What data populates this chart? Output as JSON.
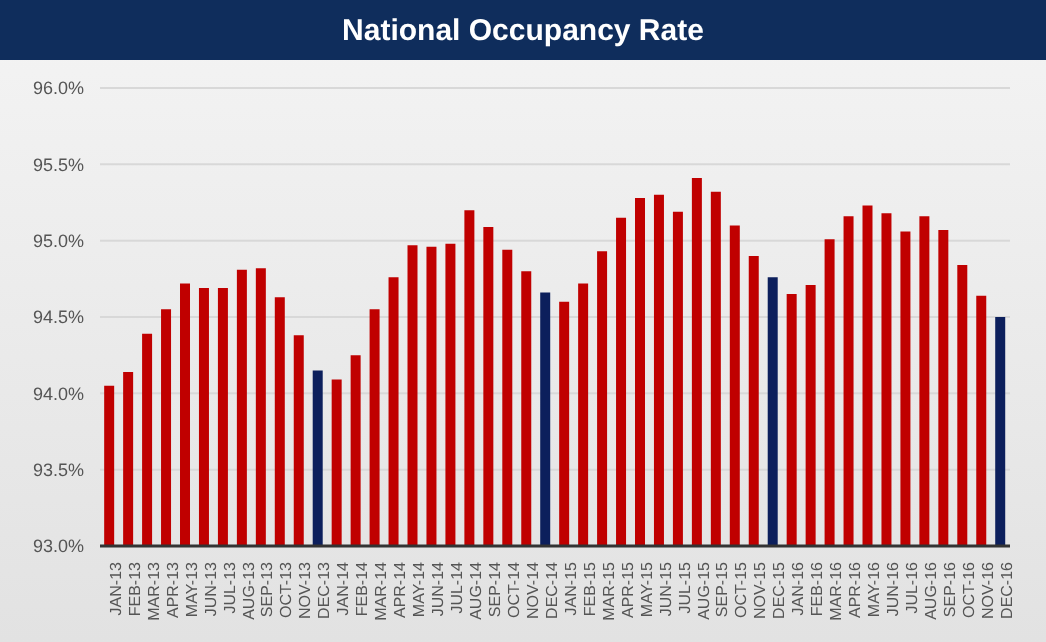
{
  "chart_data": {
    "type": "bar",
    "title": "National Occupancy Rate",
    "categories": [
      "JAN-13",
      "FEB-13",
      "MAR-13",
      "APR-13",
      "MAY-13",
      "JUN-13",
      "JUL-13",
      "AUG-13",
      "SEP-13",
      "OCT-13",
      "NOV-13",
      "DEC-13",
      "JAN-14",
      "FEB-14",
      "MAR-14",
      "APR-14",
      "MAY-14",
      "JUN-14",
      "JUL-14",
      "AUG-14",
      "SEP-14",
      "OCT-14",
      "NOV-14",
      "DEC-14",
      "JAN-15",
      "FEB-15",
      "MAR-15",
      "APR-15",
      "MAY-15",
      "JUN-15",
      "JUL-15",
      "AUG-15",
      "SEP-15",
      "OCT-15",
      "NOV-15",
      "DEC-15",
      "JAN-16",
      "FEB-16",
      "MAR-16",
      "APR-16",
      "MAY-16",
      "JUN-16",
      "JUL-16",
      "AUG-16",
      "SEP-16",
      "OCT-16",
      "NOV-16",
      "DEC-16"
    ],
    "values": [
      94.05,
      94.14,
      94.39,
      94.55,
      94.72,
      94.69,
      94.69,
      94.81,
      94.82,
      94.63,
      94.38,
      94.15,
      94.09,
      94.25,
      94.55,
      94.76,
      94.97,
      94.96,
      94.98,
      95.2,
      95.09,
      94.94,
      94.8,
      94.66,
      94.6,
      94.72,
      94.93,
      95.15,
      95.28,
      95.3,
      95.19,
      95.41,
      95.32,
      95.1,
      94.9,
      94.76,
      94.65,
      94.71,
      95.01,
      95.16,
      95.23,
      95.18,
      95.06,
      95.16,
      95.07,
      94.84,
      94.64,
      94.5
    ],
    "colors": [
      "#c00000",
      "#c00000",
      "#c00000",
      "#c00000",
      "#c00000",
      "#c00000",
      "#c00000",
      "#c00000",
      "#c00000",
      "#c00000",
      "#c00000",
      "#0c1f5c",
      "#c00000",
      "#c00000",
      "#c00000",
      "#c00000",
      "#c00000",
      "#c00000",
      "#c00000",
      "#c00000",
      "#c00000",
      "#c00000",
      "#c00000",
      "#0c1f5c",
      "#c00000",
      "#c00000",
      "#c00000",
      "#c00000",
      "#c00000",
      "#c00000",
      "#c00000",
      "#c00000",
      "#c00000",
      "#c00000",
      "#c00000",
      "#0c1f5c",
      "#c00000",
      "#c00000",
      "#c00000",
      "#c00000",
      "#c00000",
      "#c00000",
      "#c00000",
      "#c00000",
      "#c00000",
      "#c00000",
      "#c00000",
      "#0c1f5c"
    ],
    "ylim": [
      93,
      96
    ],
    "yticks": [
      {
        "value": 93,
        "label": "93.0%"
      },
      {
        "value": 93.5,
        "label": "93.5%"
      },
      {
        "value": 94,
        "label": "94.0%"
      },
      {
        "value": 94.5,
        "label": "94.5%"
      },
      {
        "value": 95,
        "label": "95.0%"
      },
      {
        "value": 95.5,
        "label": "95.5%"
      },
      {
        "value": 96,
        "label": "96.0%"
      }
    ],
    "grid": "y",
    "legend": false
  }
}
